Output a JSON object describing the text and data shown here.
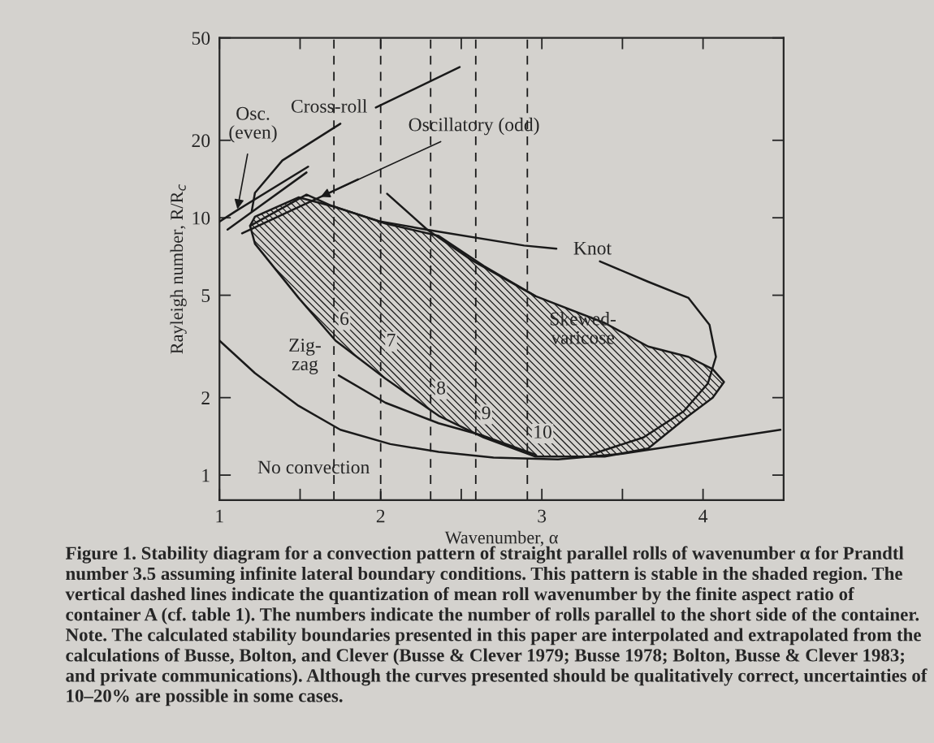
{
  "chart_data": {
    "type": "line",
    "xlabel": "Wavenumber, α",
    "ylabel": "Rayleigh number, R/R$_{c}$",
    "xlim": [
      1,
      4.5
    ],
    "ylim": [
      0.8,
      50
    ],
    "log": "y",
    "xticks": [
      1,
      {
        "value": 1.5,
        "label": null
      },
      2,
      {
        "value": 2.5,
        "label": null
      },
      3,
      {
        "value": 3.5,
        "label": null
      },
      4
    ],
    "yticks": [
      1,
      2,
      5,
      10,
      20,
      50
    ],
    "grid": false,
    "legend": false,
    "line_style": "solid",
    "marker": "none",
    "series": [
      {
        "type": "area",
        "color": "#1a1a1a",
        "x": [
          1.19,
          1.22,
          1.49,
          1.72,
          2.03,
          2.36,
          2.64,
          2.96,
          3.39,
          3.66,
          3.91,
          4.06,
          4.13,
          4.06,
          3.91,
          3.66,
          3.39,
          2.96,
          2.64,
          2.36,
          2.03,
          1.72,
          1.49,
          1.22,
          1.19
        ],
        "values": [
          9.3,
          10.1,
          12.0,
          11.0,
          9.5,
          8.5,
          6.5,
          4.96,
          3.9,
          3.16,
          2.88,
          2.58,
          2.3,
          2.0,
          1.7,
          1.27,
          1.18,
          1.18,
          1.4,
          1.7,
          2.37,
          3.33,
          4.89,
          7.93,
          9.3
        ]
      },
      {
        "name": "No convection",
        "color": "#1a1a1a",
        "x": [
          1.0,
          1.22,
          1.49,
          1.75,
          2.06,
          2.36,
          2.7,
          3.1,
          3.5,
          4.0,
          4.48
        ],
        "values": [
          3.33,
          2.49,
          1.86,
          1.5,
          1.32,
          1.23,
          1.17,
          1.15,
          1.21,
          1.35,
          1.5
        ]
      },
      {
        "name": "Zig-\nzag",
        "color": "#1a1a1a",
        "x": [
          1.74,
          2.03,
          2.36,
          2.64,
          2.96
        ],
        "values": [
          2.44,
          1.91,
          1.59,
          1.42,
          1.2
        ]
      },
      {
        "name": "Knot",
        "color": "#1a1a1a",
        "x": [
          1.19,
          1.54,
          1.7,
          1.99,
          2.29,
          2.89,
          3.09,
          3.2,
          3.36,
          3.66,
          3.91,
          4.04,
          4.08,
          4.03,
          3.88,
          3.63,
          3.3
        ],
        "values": [
          9.3,
          12.3,
          11.1,
          9.7,
          8.98,
          7.8,
          7.58,
          null,
          6.77,
          5.64,
          4.88,
          3.84,
          2.88,
          2.27,
          1.77,
          1.4,
          1.2
        ]
      },
      {
        "name": "Skewed-\nvaricose",
        "color": "#1a1a1a",
        "x": [
          2.04,
          2.29,
          2.56,
          2.96
        ],
        "values": [
          12.4,
          8.98,
          6.87,
          4.96
        ]
      },
      {
        "name": "Cross-roll",
        "color": "#1a1a1a",
        "x": [
          1.2,
          1.22,
          1.39,
          1.75,
          1.86,
          1.97,
          2.49
        ],
        "values": [
          10.6,
          12.5,
          16.7,
          23.2,
          null,
          26.8,
          38.5
        ]
      },
      {
        "name": "Osc.\n(even)",
        "color": "#1a1a1a",
        "x": [
          1.0,
          1.11,
          1.55
        ],
        "values": [
          9.66,
          10.7,
          15.8
        ]
      },
      {
        "color": "#1a1a1a",
        "x": [
          1.05,
          1.54
        ],
        "values": [
          9.0,
          15.0
        ]
      },
      {
        "name": "Oscillatory (odd)",
        "color": "#1a1a1a",
        "x": [
          1.14,
          1.62,
          1.86
        ],
        "values": [
          8.7,
          12.0,
          14.1
        ]
      }
    ],
    "ref_lines": [
      {
        "axis": "x",
        "value": 1.71,
        "color": "#1a1a1a",
        "line_style": "dashed"
      },
      {
        "axis": "x",
        "value": 2.0,
        "color": "#1a1a1a",
        "line_style": "dashed"
      },
      {
        "axis": "x",
        "value": 2.31,
        "color": "#1a1a1a",
        "line_style": "dashed"
      },
      {
        "axis": "x",
        "value": 2.59,
        "color": "#1a1a1a",
        "line_style": "dashed"
      },
      {
        "axis": "x",
        "value": 2.91,
        "color": "#1a1a1a",
        "line_style": "dashed"
      }
    ],
    "annotations": [
      {
        "text": "6",
        "x": 1.71,
        "y": 4.0
      },
      {
        "text": "7",
        "x": 2.0,
        "y": 3.3
      },
      {
        "text": "8",
        "x": 2.31,
        "y": 2.15
      },
      {
        "text": "9",
        "x": 2.59,
        "y": 1.72
      },
      {
        "text": "10",
        "x": 2.91,
        "y": 1.45
      },
      "Figure 1. Stability diagram for a convection pattern of straight parallel rolls of wavenumber α for Prandtl number 3.5 assuming infinite lateral boundary conditions. This pattern is stable in the shaded region. The vertical dashed lines indicate the quantization of mean roll wavenumber by the finite aspect ratio of container A (cf. table 1). The numbers indicate the number of rolls parallel to the short side of the container. Note. The calculated stability boundaries presented in this paper are interpolated and extrapolated from the calculations of Busse, Bolton, and Clever (Busse & Clever 1979; Busse 1978; Bolton, Busse & Clever 1983; and private communications). Although the curves presented should be qualitatively correct, uncertainties of 10–20% are possible in some cases."
    ]
  }
}
